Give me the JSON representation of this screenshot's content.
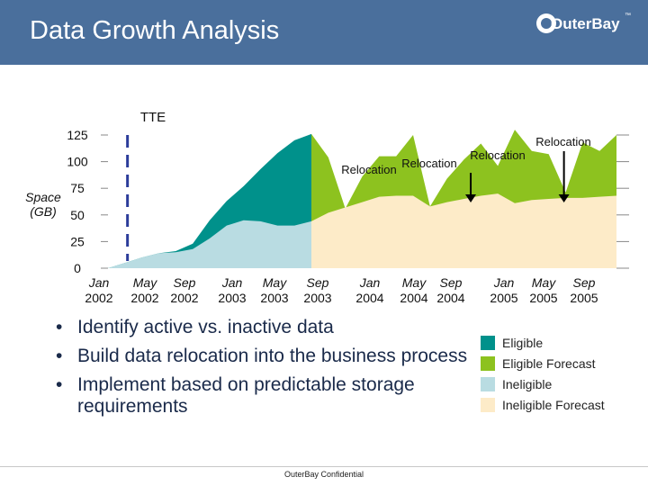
{
  "header": {
    "title": "Data Growth Analysis",
    "logo_text": "OuterBay",
    "logo_tm": "™"
  },
  "bullets": [
    "Identify active vs. inactive data",
    "Build data relocation into the business process",
    "Implement based on predictable storage requirements"
  ],
  "footer": {
    "text": "OuterBay Confidential"
  },
  "legend": [
    {
      "label": "Eligible",
      "color": "#00918b"
    },
    {
      "label": "Eligible Forecast",
      "color": "#8dc21f"
    },
    {
      "label": "Ineligible",
      "color": "#b9dce2"
    },
    {
      "label": "Ineligible Forecast",
      "color": "#fdebc8"
    }
  ],
  "chart_data": {
    "type": "area",
    "ylabel": "Space (GB)",
    "ylim": [
      0,
      125
    ],
    "yticks": [
      0,
      25,
      50,
      75,
      100,
      125
    ],
    "x_ticks": [
      {
        "month": "Jan",
        "year": "2002"
      },
      {
        "month": "May",
        "year": "2002"
      },
      {
        "month": "Sep",
        "year": "2002"
      },
      {
        "month": "Jan",
        "year": "2003"
      },
      {
        "month": "May",
        "year": "2003"
      },
      {
        "month": "Sep",
        "year": "2003"
      },
      {
        "month": "Jan",
        "year": "2004"
      },
      {
        "month": "May",
        "year": "2004"
      },
      {
        "month": "Sep",
        "year": "2004"
      },
      {
        "month": "Jan",
        "year": "2005"
      },
      {
        "month": "May",
        "year": "2005"
      },
      {
        "month": "Sep",
        "year": "2005"
      }
    ],
    "marker": {
      "label": "TTE",
      "month_index": 2.3
    },
    "relocations": [
      {
        "label": "Relocation",
        "month_index": 33.0,
        "arrow": false
      },
      {
        "label": "Relocation",
        "month_index": 42.8,
        "arrow": true
      },
      {
        "label": "Relocation",
        "month_index": 46.0,
        "arrow": false
      },
      {
        "label": "Relocation",
        "month_index": 53.8,
        "arrow": true
      }
    ],
    "series": [
      {
        "name": "Ineligible",
        "x": [
          0,
          2,
          4,
          6,
          8,
          10,
          12,
          14,
          16,
          18,
          20,
          22,
          24
        ],
        "values": [
          0,
          5,
          10,
          14,
          15,
          18,
          28,
          40,
          45,
          44,
          40,
          40,
          44
        ]
      },
      {
        "name": "Eligible",
        "x": [
          0,
          2,
          4,
          6,
          8,
          10,
          12,
          14,
          16,
          18,
          20,
          22,
          24
        ],
        "values": [
          0,
          5,
          10,
          14,
          16,
          23,
          45,
          63,
          77,
          93,
          108,
          120,
          126
        ]
      },
      {
        "name": "Ineligible Forecast",
        "x": [
          24,
          26,
          28,
          30,
          32,
          34,
          36,
          38,
          40,
          42,
          44,
          46,
          48,
          50,
          52,
          54,
          56,
          58,
          60
        ],
        "values": [
          44,
          52,
          57,
          62,
          67,
          68,
          68,
          58,
          62,
          65,
          68,
          70,
          61,
          64,
          65,
          66,
          66,
          67,
          68
        ]
      },
      {
        "name": "Eligible Forecast",
        "x": [
          24,
          26,
          28,
          30,
          32,
          34,
          36,
          38,
          40,
          42,
          44,
          46,
          48,
          50,
          52,
          54,
          56,
          58,
          60
        ],
        "values": [
          126,
          104,
          56,
          86,
          105,
          105,
          125,
          58,
          84,
          102,
          117,
          96,
          130,
          110,
          107,
          71,
          118,
          110,
          125
        ]
      }
    ]
  }
}
